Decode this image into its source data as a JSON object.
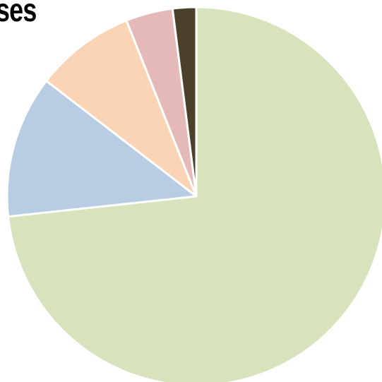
{
  "chart_data": {
    "type": "pie",
    "title": "ses",
    "start": "12 o'clock",
    "direction": "clockwise",
    "slice_border_color": "#ffffff",
    "slices": [
      {
        "value": 73.0,
        "color": "#d7e3bd"
      },
      {
        "value": 12.1,
        "color": "#b8cce4"
      },
      {
        "value": 8.5,
        "color": "#fbd4b5"
      },
      {
        "value": 4.0,
        "color": "#e5b9b8"
      },
      {
        "value": 2.0,
        "color": "#4b412b"
      }
    ]
  }
}
